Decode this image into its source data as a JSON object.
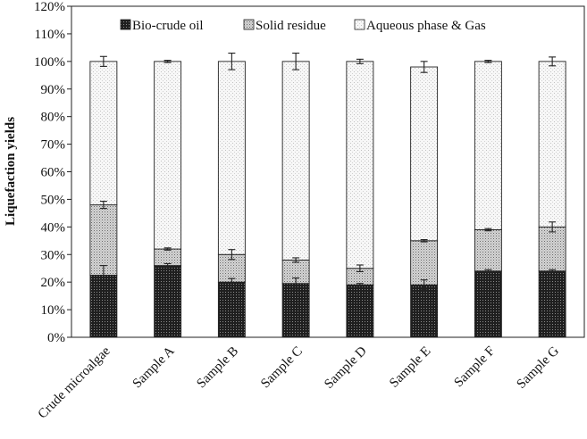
{
  "chart_data": {
    "type": "bar",
    "stacked": true,
    "title": "",
    "xlabel": "",
    "ylabel": "Liquefaction yields",
    "ylim": [
      0,
      120
    ],
    "y_unit": "%",
    "y_ticks": [
      "0%",
      "10%",
      "20%",
      "30%",
      "40%",
      "50%",
      "60%",
      "70%",
      "80%",
      "90%",
      "100%",
      "110%",
      "120%"
    ],
    "legend_position": "top",
    "grid": false,
    "categories": [
      "Crude microalgae",
      "Sample A",
      "Sample B",
      "Sample C",
      "Sample D",
      "Sample E",
      "Sample F",
      "Sample G"
    ],
    "series": [
      {
        "name": "Bio-crude oil",
        "pattern": "dark-dotted",
        "values": [
          22.5,
          26.0,
          20.0,
          19.5,
          19.0,
          19.0,
          24.0,
          24.0
        ],
        "error": [
          3.5,
          0.7,
          1.3,
          2.0,
          0.5,
          1.8,
          0.5,
          0.5
        ]
      },
      {
        "name": "Solid residue",
        "pattern": "medium-dotted",
        "values": [
          25.5,
          6.0,
          10.0,
          8.5,
          6.0,
          16.0,
          15.0,
          16.0
        ],
        "error": [
          1.3,
          0.4,
          1.8,
          0.8,
          1.2,
          0.4,
          0.4,
          1.8
        ]
      },
      {
        "name": "Aqueous phase & Gas",
        "pattern": "light-dotted",
        "values": [
          52.0,
          68.0,
          70.0,
          72.0,
          75.0,
          63.0,
          61.0,
          60.0
        ],
        "error": [
          1.8,
          0.4,
          3.0,
          3.0,
          0.8,
          2.0,
          0.4,
          1.6
        ]
      }
    ]
  }
}
